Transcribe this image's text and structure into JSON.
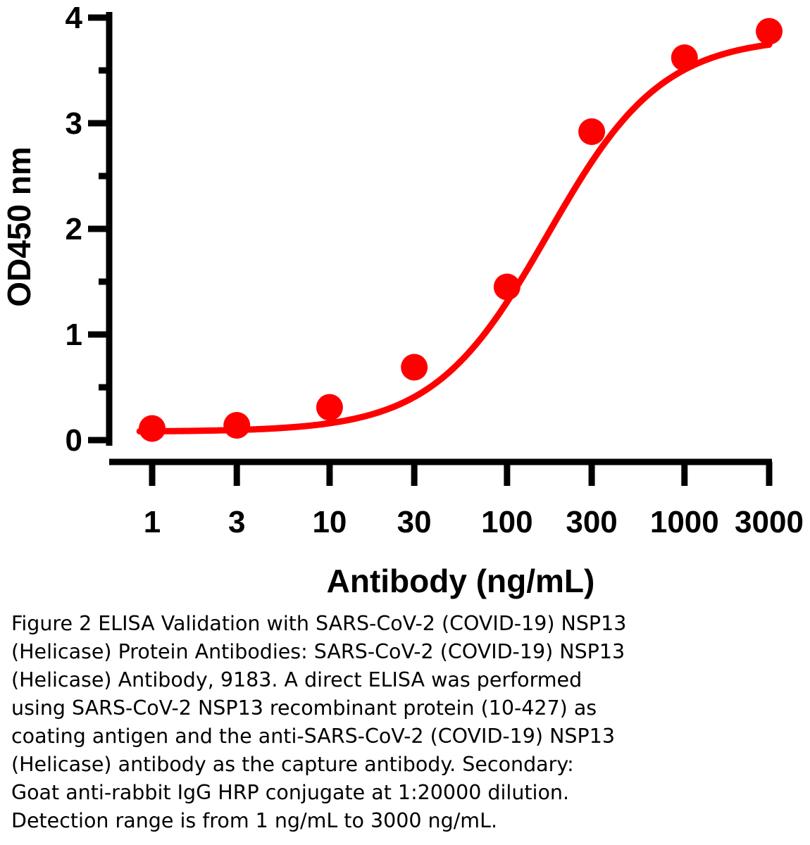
{
  "chart_data": {
    "type": "line",
    "x_scale": "log",
    "xlabel": "Antibody (ng/mL)",
    "ylabel": "OD450 nm",
    "x_ticks": [
      1,
      3,
      10,
      30,
      100,
      300,
      1000,
      3000
    ],
    "x_tick_labels": [
      "1",
      "3",
      "10",
      "30",
      "100",
      "300",
      "1000",
      "3000"
    ],
    "y_ticks": [
      0,
      1,
      2,
      3,
      4
    ],
    "y_tick_labels": [
      "0",
      "1",
      "2",
      "3",
      "4"
    ],
    "ylim": [
      0,
      4
    ],
    "series": [
      {
        "name": "SARS-CoV-2 (COVID-19) NSP13 (Helicase) Antibody, 9183",
        "color": "#ff0000",
        "x": [
          1,
          3,
          10,
          30,
          100,
          300,
          1000,
          3000
        ],
        "values": [
          0.11,
          0.14,
          0.31,
          0.69,
          1.45,
          2.92,
          3.62,
          3.87
        ]
      }
    ],
    "fit_curve": {
      "model": "4PL",
      "bottom": 0.08,
      "top": 3.82,
      "ec50": 170,
      "hill": 1.35,
      "x_min": 0.85,
      "x_max": 3000
    }
  },
  "caption": {
    "lines": [
      "Figure 2 ELISA Validation with SARS-CoV-2 (COVID-19) NSP13",
      "(Helicase) Protein Antibodies: SARS-CoV-2 (COVID-19) NSP13",
      "(Helicase) Antibody, 9183. A direct ELISA was performed",
      "using SARS-CoV-2 NSP13 recombinant protein (10-427) as",
      "coating antigen and the anti-SARS-CoV-2 (COVID-19) NSP13",
      "(Helicase) antibody as the capture antibody. Secondary:",
      "Goat anti-rabbit IgG HRP conjugate at 1:20000 dilution.",
      "Detection range is from 1 ng/mL to 3000 ng/mL."
    ]
  }
}
